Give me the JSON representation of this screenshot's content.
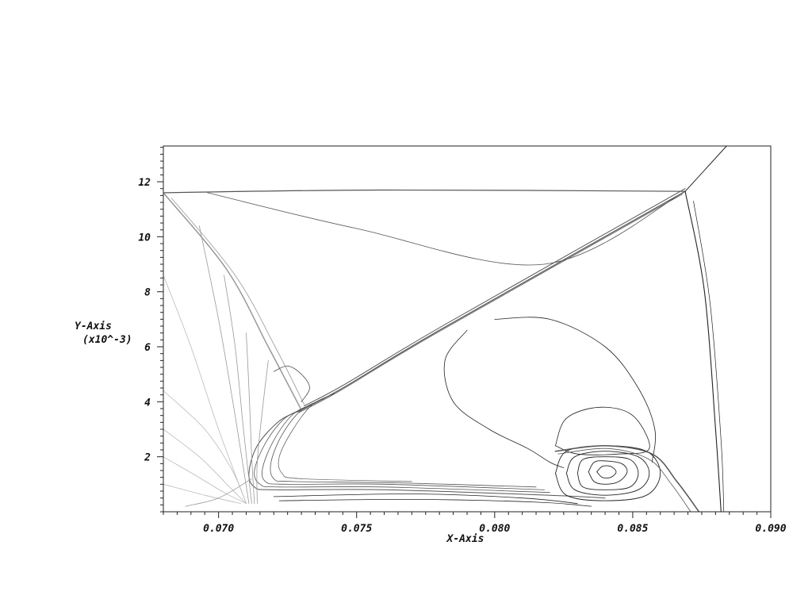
{
  "chart_data": {
    "type": "contour",
    "title": "",
    "xlabel": "X-Axis",
    "ylabel": "Y-Axis",
    "ylabel_scale": "(x10^-3)",
    "xlim": [
      0.068,
      0.09
    ],
    "ylim": [
      0.0,
      13.3
    ],
    "xticks": [
      0.07,
      0.075,
      0.08,
      0.085,
      0.09
    ],
    "xtick_labels": [
      "0.070",
      "0.075",
      "0.080",
      "0.085",
      "0.090"
    ],
    "yticks": [
      2,
      4,
      6,
      8,
      10,
      12
    ],
    "ytick_labels": [
      "2",
      "4",
      "6",
      "8",
      "10",
      "12"
    ],
    "grid": false,
    "legend": "none",
    "colors": {
      "dark": "#222222",
      "mid": "#555555",
      "light": "#999999",
      "faint": "#bbbbbb"
    },
    "features": [
      {
        "name": "upper-horizontal-shock",
        "shade": "mid",
        "width": 1.2,
        "points": [
          [
            0.068,
            11.6
          ],
          [
            0.076,
            11.7
          ],
          [
            0.0869,
            11.65
          ]
        ]
      },
      {
        "name": "upper-right-shock",
        "shade": "dark",
        "width": 1.0,
        "points": [
          [
            0.0869,
            11.65
          ],
          [
            0.0884,
            13.3
          ]
        ]
      },
      {
        "name": "upper-faint-line",
        "shade": "mid",
        "width": 0.8,
        "points": [
          [
            0.0696,
            11.6
          ],
          [
            0.075,
            10.3
          ],
          [
            0.0818,
            9.0
          ],
          [
            0.0869,
            11.65
          ]
        ]
      },
      {
        "name": "main-oblique-shock-a",
        "shade": "mid",
        "width": 1.2,
        "points": [
          [
            0.073,
            3.7
          ],
          [
            0.0745,
            4.5
          ],
          [
            0.078,
            6.6
          ],
          [
            0.0869,
            11.65
          ]
        ]
      },
      {
        "name": "main-oblique-shock-b",
        "shade": "mid",
        "width": 1.0,
        "points": [
          [
            0.0731,
            3.85
          ],
          [
            0.0746,
            4.65
          ],
          [
            0.0781,
            6.75
          ],
          [
            0.0869,
            11.75
          ]
        ]
      },
      {
        "name": "main-oblique-shock-c",
        "shade": "mid",
        "width": 0.8,
        "points": [
          [
            0.0729,
            3.6
          ],
          [
            0.0744,
            4.4
          ],
          [
            0.0779,
            6.5
          ],
          [
            0.0868,
            11.55
          ]
        ]
      },
      {
        "name": "left-curved-shock",
        "shade": "light",
        "width": 1.5,
        "points": [
          [
            0.068,
            11.6
          ],
          [
            0.0703,
            8.8
          ],
          [
            0.0718,
            6.0
          ],
          [
            0.073,
            3.7
          ]
        ]
      },
      {
        "name": "left-curved-shock-b",
        "shade": "light",
        "width": 0.8,
        "points": [
          [
            0.0683,
            11.4
          ],
          [
            0.0706,
            8.6
          ],
          [
            0.0721,
            5.9
          ],
          [
            0.0731,
            3.9
          ]
        ]
      },
      {
        "name": "right-vertical-shock",
        "shade": "dark",
        "width": 1.1,
        "points": [
          [
            0.0869,
            11.65
          ],
          [
            0.0876,
            8.0
          ],
          [
            0.088,
            3.0
          ],
          [
            0.0882,
            0.0
          ]
        ]
      },
      {
        "name": "right-vertical-shock-b",
        "shade": "dark",
        "width": 0.7,
        "points": [
          [
            0.0872,
            11.3
          ],
          [
            0.0878,
            7.6
          ],
          [
            0.0882,
            2.6
          ],
          [
            0.0883,
            0.0
          ]
        ]
      },
      {
        "name": "bow-shock-outer",
        "shade": "mid",
        "width": 1.0,
        "points": [
          [
            0.073,
            3.7
          ],
          [
            0.0722,
            3.3
          ],
          [
            0.0714,
            2.4
          ],
          [
            0.0711,
            1.4
          ],
          [
            0.0713,
            0.9
          ],
          [
            0.072,
            0.8
          ],
          [
            0.076,
            0.8
          ],
          [
            0.082,
            0.6
          ],
          [
            0.084,
            0.5
          ]
        ]
      },
      {
        "name": "bow-shock-2",
        "shade": "mid",
        "width": 0.8,
        "points": [
          [
            0.0732,
            3.8
          ],
          [
            0.0724,
            3.4
          ],
          [
            0.0717,
            2.5
          ],
          [
            0.0713,
            1.5
          ],
          [
            0.0715,
            1.0
          ],
          [
            0.0722,
            0.9
          ],
          [
            0.076,
            0.9
          ],
          [
            0.082,
            0.7
          ]
        ]
      },
      {
        "name": "bow-shock-3",
        "shade": "mid",
        "width": 0.8,
        "points": [
          [
            0.0735,
            3.95
          ],
          [
            0.0727,
            3.55
          ],
          [
            0.072,
            2.6
          ],
          [
            0.0716,
            1.6
          ],
          [
            0.0717,
            1.1
          ],
          [
            0.0724,
            1.0
          ],
          [
            0.076,
            1.0
          ],
          [
            0.0818,
            0.8
          ]
        ]
      },
      {
        "name": "bow-shock-4",
        "shade": "mid",
        "width": 0.8,
        "points": [
          [
            0.0738,
            4.1
          ],
          [
            0.073,
            3.7
          ],
          [
            0.0723,
            2.8
          ],
          [
            0.0719,
            1.8
          ],
          [
            0.072,
            1.2
          ],
          [
            0.0727,
            1.1
          ],
          [
            0.0765,
            1.05
          ],
          [
            0.0815,
            0.9
          ]
        ]
      },
      {
        "name": "bow-shock-5",
        "shade": "mid",
        "width": 0.7,
        "points": [
          [
            0.0742,
            4.3
          ],
          [
            0.0734,
            3.9
          ],
          [
            0.0727,
            3.0
          ],
          [
            0.0722,
            2.0
          ],
          [
            0.0723,
            1.4
          ],
          [
            0.073,
            1.2
          ],
          [
            0.077,
            1.1
          ]
        ]
      },
      {
        "name": "bottom-wall-contour-1",
        "shade": "dark",
        "width": 0.8,
        "points": [
          [
            0.072,
            0.55
          ],
          [
            0.077,
            0.65
          ],
          [
            0.081,
            0.5
          ],
          [
            0.083,
            0.3
          ]
        ]
      },
      {
        "name": "bottom-wall-contour-2",
        "shade": "dark",
        "width": 0.8,
        "points": [
          [
            0.0722,
            0.4
          ],
          [
            0.077,
            0.45
          ],
          [
            0.0815,
            0.35
          ],
          [
            0.0835,
            0.2
          ]
        ]
      },
      {
        "name": "left-fan-1",
        "shade": "faint",
        "width": 0.8,
        "points": [
          [
            0.068,
            8.6
          ],
          [
            0.069,
            6.0
          ],
          [
            0.07,
            3.0
          ],
          [
            0.071,
            0.3
          ]
        ]
      },
      {
        "name": "left-fan-2",
        "shade": "faint",
        "width": 0.8,
        "points": [
          [
            0.068,
            4.4
          ],
          [
            0.0695,
            3.0
          ],
          [
            0.0705,
            1.5
          ],
          [
            0.071,
            0.3
          ]
        ]
      },
      {
        "name": "left-fan-3",
        "shade": "faint",
        "width": 0.8,
        "points": [
          [
            0.068,
            3.0
          ],
          [
            0.0693,
            2.0
          ],
          [
            0.0703,
            1.0
          ],
          [
            0.071,
            0.3
          ]
        ]
      },
      {
        "name": "left-fan-4",
        "shade": "faint",
        "width": 0.8,
        "points": [
          [
            0.068,
            2.0
          ],
          [
            0.0692,
            1.3
          ],
          [
            0.0702,
            0.7
          ],
          [
            0.071,
            0.3
          ]
        ]
      },
      {
        "name": "left-fan-5",
        "shade": "faint",
        "width": 0.8,
        "points": [
          [
            0.068,
            1.0
          ],
          [
            0.0695,
            0.6
          ],
          [
            0.0708,
            0.3
          ]
        ]
      },
      {
        "name": "left-fan-6",
        "shade": "light",
        "width": 0.8,
        "points": [
          [
            0.0693,
            10.4
          ],
          [
            0.07,
            7.0
          ],
          [
            0.0706,
            3.5
          ],
          [
            0.0711,
            0.3
          ]
        ]
      },
      {
        "name": "left-fan-7",
        "shade": "light",
        "width": 0.8,
        "points": [
          [
            0.0702,
            8.6
          ],
          [
            0.0706,
            6.0
          ],
          [
            0.0709,
            3.0
          ],
          [
            0.0712,
            0.3
          ]
        ]
      },
      {
        "name": "left-fan-8",
        "shade": "light",
        "width": 0.8,
        "points": [
          [
            0.071,
            6.5
          ],
          [
            0.0711,
            4.5
          ],
          [
            0.0712,
            2.0
          ],
          [
            0.0713,
            0.3
          ]
        ]
      },
      {
        "name": "left-fan-9",
        "shade": "light",
        "width": 0.8,
        "points": [
          [
            0.0718,
            5.5
          ],
          [
            0.0716,
            3.8
          ],
          [
            0.0714,
            1.8
          ],
          [
            0.0714,
            0.3
          ]
        ]
      },
      {
        "name": "left-fan-10",
        "shade": "light",
        "width": 0.8,
        "points": [
          [
            0.0688,
            0.2
          ],
          [
            0.07,
            0.5
          ],
          [
            0.0712,
            1.2
          ]
        ]
      },
      {
        "name": "small-bump-near-shock",
        "shade": "mid",
        "width": 0.8,
        "points": [
          [
            0.072,
            5.1
          ],
          [
            0.0725,
            5.3
          ],
          [
            0.073,
            5.0
          ],
          [
            0.0733,
            4.5
          ],
          [
            0.073,
            4.0
          ]
        ]
      },
      {
        "name": "mid-region-contour",
        "shade": "dark",
        "width": 0.8,
        "points": [
          [
            0.079,
            6.6
          ],
          [
            0.0782,
            5.5
          ],
          [
            0.0785,
            4.0
          ],
          [
            0.0798,
            3.0
          ],
          [
            0.0812,
            2.3
          ],
          [
            0.082,
            1.8
          ],
          [
            0.0825,
            1.6
          ]
        ]
      },
      {
        "name": "large-arc-contour",
        "shade": "dark",
        "width": 0.8,
        "points": [
          [
            0.08,
            7.0
          ],
          [
            0.082,
            7.0
          ],
          [
            0.084,
            6.0
          ],
          [
            0.0852,
            4.5
          ],
          [
            0.0858,
            3.0
          ],
          [
            0.0857,
            1.8
          ]
        ]
      },
      {
        "name": "vortex-outer-arc",
        "shade": "dark",
        "width": 0.8,
        "points": [
          [
            0.0822,
            2.4
          ],
          [
            0.0826,
            3.4
          ],
          [
            0.0838,
            3.8
          ],
          [
            0.085,
            3.5
          ],
          [
            0.0856,
            2.3
          ],
          [
            0.0845,
            2.1
          ],
          [
            0.083,
            2.1
          ],
          [
            0.0822,
            2.4
          ]
        ]
      },
      {
        "name": "vortex-ring-1",
        "shade": "dark",
        "width": 0.9,
        "points": [
          [
            0.0822,
            1.4
          ],
          [
            0.0826,
            2.2
          ],
          [
            0.084,
            2.4
          ],
          [
            0.0855,
            2.2
          ],
          [
            0.086,
            1.4
          ],
          [
            0.0855,
            0.6
          ],
          [
            0.084,
            0.4
          ],
          [
            0.0826,
            0.6
          ],
          [
            0.0822,
            1.4
          ]
        ]
      },
      {
        "name": "vortex-ring-2",
        "shade": "dark",
        "width": 0.9,
        "points": [
          [
            0.0826,
            1.4
          ],
          [
            0.0829,
            2.0
          ],
          [
            0.084,
            2.2
          ],
          [
            0.0852,
            2.0
          ],
          [
            0.0856,
            1.4
          ],
          [
            0.0852,
            0.8
          ],
          [
            0.084,
            0.6
          ],
          [
            0.0829,
            0.8
          ],
          [
            0.0826,
            1.4
          ]
        ]
      },
      {
        "name": "vortex-ring-3",
        "shade": "dark",
        "width": 0.9,
        "points": [
          [
            0.083,
            1.4
          ],
          [
            0.0832,
            1.9
          ],
          [
            0.084,
            2.0
          ],
          [
            0.0849,
            1.9
          ],
          [
            0.0852,
            1.4
          ],
          [
            0.0849,
            0.9
          ],
          [
            0.084,
            0.8
          ],
          [
            0.0832,
            0.9
          ],
          [
            0.083,
            1.4
          ]
        ]
      },
      {
        "name": "vortex-ring-4",
        "shade": "dark",
        "width": 0.9,
        "points": [
          [
            0.0834,
            1.45
          ],
          [
            0.0836,
            1.8
          ],
          [
            0.084,
            1.85
          ],
          [
            0.0846,
            1.75
          ],
          [
            0.0848,
            1.45
          ],
          [
            0.0845,
            1.1
          ],
          [
            0.084,
            1.0
          ],
          [
            0.0836,
            1.1
          ],
          [
            0.0834,
            1.45
          ]
        ]
      },
      {
        "name": "vortex-core",
        "shade": "dark",
        "width": 0.9,
        "points": [
          [
            0.0837,
            1.45
          ],
          [
            0.0839,
            1.65
          ],
          [
            0.0842,
            1.65
          ],
          [
            0.0844,
            1.45
          ],
          [
            0.0842,
            1.25
          ],
          [
            0.0839,
            1.25
          ],
          [
            0.0837,
            1.45
          ]
        ]
      },
      {
        "name": "trailing-shock",
        "shade": "mid",
        "width": 1.5,
        "points": [
          [
            0.0822,
            2.2
          ],
          [
            0.084,
            2.4
          ],
          [
            0.0857,
            2.1
          ],
          [
            0.0866,
            1.1
          ],
          [
            0.0874,
            0.0
          ]
        ]
      },
      {
        "name": "trailing-shock-b",
        "shade": "mid",
        "width": 0.8,
        "points": [
          [
            0.0823,
            2.1
          ],
          [
            0.0841,
            2.3
          ],
          [
            0.0856,
            1.9
          ],
          [
            0.0864,
            1.0
          ],
          [
            0.0871,
            0.0
          ]
        ]
      }
    ]
  }
}
